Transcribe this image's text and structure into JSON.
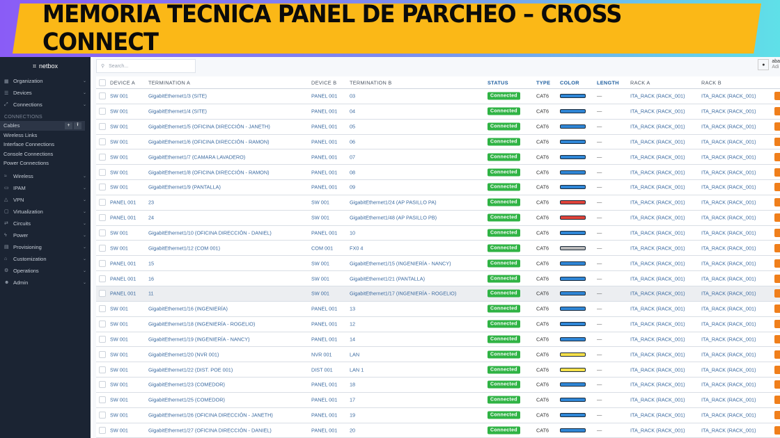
{
  "banner": {
    "title": "MEMORIA TÉCNICA PANEL DE PARCHEO – CROSS CONNECT"
  },
  "app": {
    "brand": "netbox"
  },
  "sidebar": {
    "top": [
      {
        "label": "Organization",
        "icon": "building-icon"
      },
      {
        "label": "Devices",
        "icon": "server-icon"
      },
      {
        "label": "Connections",
        "icon": "connection-icon"
      }
    ],
    "section": "CONNECTIONS",
    "sub": [
      "Cables",
      "Wireless Links",
      "Interface Connections",
      "Console Connections",
      "Power Connections"
    ],
    "bottom": [
      {
        "label": "Wireless",
        "icon": "wifi-icon"
      },
      {
        "label": "IPAM",
        "icon": "ip-icon"
      },
      {
        "label": "VPN",
        "icon": "vpn-icon"
      },
      {
        "label": "Virtualization",
        "icon": "monitor-icon"
      },
      {
        "label": "Circuits",
        "icon": "circuit-icon"
      },
      {
        "label": "Power",
        "icon": "power-icon"
      },
      {
        "label": "Provisioning",
        "icon": "provision-icon"
      },
      {
        "label": "Customization",
        "icon": "customize-icon"
      },
      {
        "label": "Operations",
        "icon": "operations-icon"
      },
      {
        "label": "Admin",
        "icon": "admin-icon"
      }
    ]
  },
  "search": {
    "placeholder": "Search..."
  },
  "user": {
    "name": "aba",
    "role": "Adi"
  },
  "table": {
    "headers": [
      "DEVICE A",
      "TERMINATION A",
      "DEVICE B",
      "TERMINATION B",
      "STATUS",
      "TYPE",
      "COLOR",
      "LENGTH",
      "RACK A",
      "RACK B"
    ],
    "colors": {
      "blue": "#2f86d6",
      "red": "#e0433a",
      "gray": "#b8b8b8",
      "yellow": "#f5e04a"
    },
    "rows": [
      [
        "SW 001",
        "GigabitEthernet1/3 (SITE)",
        "PANEL 001",
        "03",
        "Connected",
        "CAT6",
        "blue",
        "—",
        "ITA_RACK (RACK_001)",
        "ITA_RACK (RACK_001)"
      ],
      [
        "SW 001",
        "GigabitEthernet1/4 (SITE)",
        "PANEL 001",
        "04",
        "Connected",
        "CAT6",
        "blue",
        "—",
        "ITA_RACK (RACK_001)",
        "ITA_RACK (RACK_001)"
      ],
      [
        "SW 001",
        "GigabitEthernet1/5 (OFICINA DIRECCIÓN - JANETH)",
        "PANEL 001",
        "05",
        "Connected",
        "CAT6",
        "blue",
        "—",
        "ITA_RACK (RACK_001)",
        "ITA_RACK (RACK_001)"
      ],
      [
        "SW 001",
        "GigabitEthernet1/6 (OFICINA DIRECCIÓN - RAMON)",
        "PANEL 001",
        "06",
        "Connected",
        "CAT6",
        "blue",
        "—",
        "ITA_RACK (RACK_001)",
        "ITA_RACK (RACK_001)"
      ],
      [
        "SW 001",
        "GigabitEthernet1/7 (CAMARA LAVADERO)",
        "PANEL 001",
        "07",
        "Connected",
        "CAT6",
        "blue",
        "—",
        "ITA_RACK (RACK_001)",
        "ITA_RACK (RACK_001)"
      ],
      [
        "SW 001",
        "GigabitEthernet1/8 (OFICINA DIRECCIÓN - RAMON)",
        "PANEL 001",
        "08",
        "Connected",
        "CAT6",
        "blue",
        "—",
        "ITA_RACK (RACK_001)",
        "ITA_RACK (RACK_001)"
      ],
      [
        "SW 001",
        "GigabitEthernet1/9 (PANTALLA)",
        "PANEL 001",
        "09",
        "Connected",
        "CAT6",
        "blue",
        "—",
        "ITA_RACK (RACK_001)",
        "ITA_RACK (RACK_001)"
      ],
      [
        "PANEL 001",
        "23",
        "SW 001",
        "GigabitEthernet1/24 (AP PASILLO PA)",
        "Connected",
        "CAT6",
        "red",
        "—",
        "ITA_RACK (RACK_001)",
        "ITA_RACK (RACK_001)"
      ],
      [
        "PANEL 001",
        "24",
        "SW 001",
        "GigabitEthernet1/48 (AP PASILLO PB)",
        "Connected",
        "CAT6",
        "red",
        "—",
        "ITA_RACK (RACK_001)",
        "ITA_RACK (RACK_001)"
      ],
      [
        "SW 001",
        "GigabitEthernet1/10 (OFICINA DIRECCIÓN - DANIEL)",
        "PANEL 001",
        "10",
        "Connected",
        "CAT6",
        "blue",
        "—",
        "ITA_RACK (RACK_001)",
        "ITA_RACK (RACK_001)"
      ],
      [
        "SW 001",
        "GigabitEthernet1/12 (COM 001)",
        "COM 001",
        "FX0 4",
        "Connected",
        "CAT6",
        "gray",
        "—",
        "ITA_RACK (RACK_001)",
        "ITA_RACK (RACK_001)"
      ],
      [
        "PANEL 001",
        "15",
        "SW 001",
        "GigabitEthernet1/15 (INGENIERÍA - NANCY)",
        "Connected",
        "CAT6",
        "blue",
        "—",
        "ITA_RACK (RACK_001)",
        "ITA_RACK (RACK_001)"
      ],
      [
        "PANEL 001",
        "16",
        "SW 001",
        "GigabitEthernet1/21 (PANTALLA)",
        "Connected",
        "CAT6",
        "blue",
        "—",
        "ITA_RACK (RACK_001)",
        "ITA_RACK (RACK_001)"
      ],
      [
        "PANEL 001",
        "11",
        "SW 001",
        "GigabitEthernet1/17 (INGENIERÍA - ROGELIO)",
        "Connected",
        "CAT6",
        "blue",
        "—",
        "ITA_RACK (RACK_001)",
        "ITA_RACK (RACK_001)"
      ],
      [
        "SW 001",
        "GigabitEthernet1/16 (INGENIERÍA)",
        "PANEL 001",
        "13",
        "Connected",
        "CAT6",
        "blue",
        "—",
        "ITA_RACK (RACK_001)",
        "ITA_RACK (RACK_001)"
      ],
      [
        "SW 001",
        "GigabitEthernet1/18 (INGENIERÍA - ROGELIO)",
        "PANEL 001",
        "12",
        "Connected",
        "CAT6",
        "blue",
        "—",
        "ITA_RACK (RACK_001)",
        "ITA_RACK (RACK_001)"
      ],
      [
        "SW 001",
        "GigabitEthernet1/19 (INGENIERÍA - NANCY)",
        "PANEL 001",
        "14",
        "Connected",
        "CAT6",
        "blue",
        "—",
        "ITA_RACK (RACK_001)",
        "ITA_RACK (RACK_001)"
      ],
      [
        "SW 001",
        "GigabitEthernet1/20 (NVR 001)",
        "NVR 001",
        "LAN",
        "Connected",
        "CAT6",
        "yellow",
        "—",
        "ITA_RACK (RACK_001)",
        "ITA_RACK (RACK_001)"
      ],
      [
        "SW 001",
        "GigabitEthernet1/22 (DIST. POE 001)",
        "DIST 001",
        "LAN 1",
        "Connected",
        "CAT6",
        "yellow",
        "—",
        "ITA_RACK (RACK_001)",
        "ITA_RACK (RACK_001)"
      ],
      [
        "SW 001",
        "GigabitEthernet1/23 (COMEDOR)",
        "PANEL 001",
        "18",
        "Connected",
        "CAT6",
        "blue",
        "—",
        "ITA_RACK (RACK_001)",
        "ITA_RACK (RACK_001)"
      ],
      [
        "SW 001",
        "GigabitEthernet1/25 (COMEDOR)",
        "PANEL 001",
        "17",
        "Connected",
        "CAT6",
        "blue",
        "—",
        "ITA_RACK (RACK_001)",
        "ITA_RACK (RACK_001)"
      ],
      [
        "SW 001",
        "GigabitEthernet1/26 (OFICINA DIRECCIÓN - JANETH)",
        "PANEL 001",
        "19",
        "Connected",
        "CAT6",
        "blue",
        "—",
        "ITA_RACK (RACK_001)",
        "ITA_RACK (RACK_001)"
      ],
      [
        "SW 001",
        "GigabitEthernet1/27 (OFICINA DIRECCIÓN - DANIEL)",
        "PANEL 001",
        "20",
        "Connected",
        "CAT6",
        "blue",
        "—",
        "ITA_RACK (RACK_001)",
        "ITA_RACK (RACK_001)"
      ]
    ],
    "highlighted_row": 14
  }
}
